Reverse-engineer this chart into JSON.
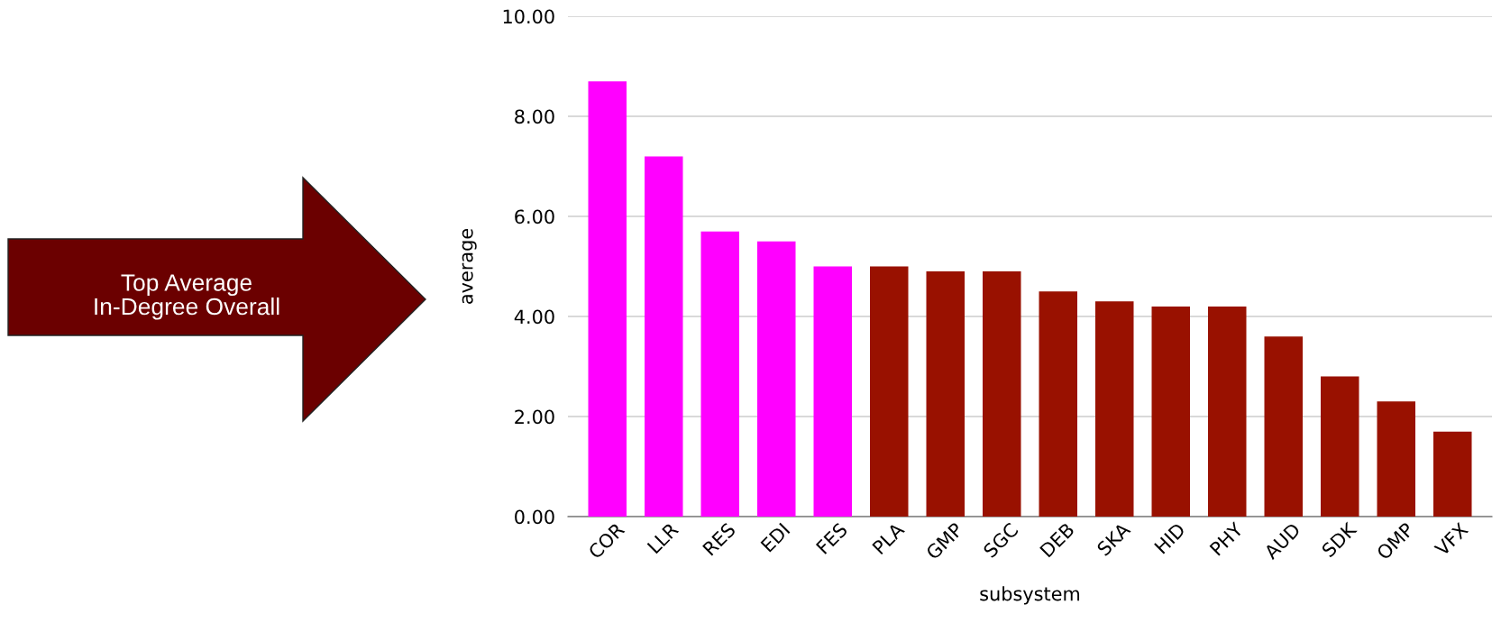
{
  "chart_data": {
    "type": "bar",
    "xlabel": "subsystem",
    "ylabel": "average",
    "categories": [
      "COR",
      "LLR",
      "RES",
      "EDI",
      "FES",
      "PLA",
      "GMP",
      "SGC",
      "DEB",
      "SKA",
      "HID",
      "PHY",
      "AUD",
      "SDK",
      "OMP",
      "VFX"
    ],
    "values": [
      8.7,
      7.2,
      5.7,
      5.5,
      5.0,
      5.0,
      4.9,
      4.9,
      4.5,
      4.3,
      4.2,
      4.2,
      3.6,
      2.8,
      2.3,
      1.7
    ],
    "colors": [
      "#ff00ff",
      "#ff00ff",
      "#ff00ff",
      "#ff00ff",
      "#ff00ff",
      "#991100",
      "#991100",
      "#991100",
      "#991100",
      "#991100",
      "#991100",
      "#991100",
      "#991100",
      "#991100",
      "#991100",
      "#991100"
    ],
    "ylim": [
      0,
      10
    ],
    "yticks": [
      {
        "value": 0,
        "label": "0.00"
      },
      {
        "value": 2,
        "label": "2.00"
      },
      {
        "value": 4,
        "label": "4.00"
      },
      {
        "value": 6,
        "label": "6.00"
      },
      {
        "value": 8,
        "label": "8.00"
      },
      {
        "value": 10,
        "label": "10.00"
      }
    ],
    "grid": "y",
    "annotations": [
      "Top Average\nIn-Degree Overall"
    ]
  }
}
